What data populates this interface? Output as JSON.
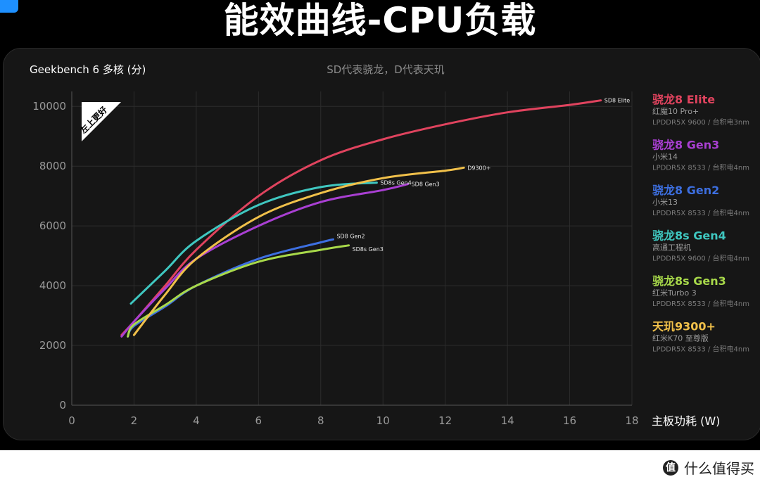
{
  "page": {
    "title": "能效曲线-CPU负载",
    "corner_badge": "",
    "watermark": "什么值得买",
    "watermark_logo": "值"
  },
  "chart_data": {
    "type": "line",
    "title": "Geekbench 6 多核 (分)",
    "subtitle": "SD代表骁龙，D代表天玑",
    "xlabel": "主板功耗 (W)",
    "ylabel": "",
    "xlim": [
      0,
      18
    ],
    "ylim": [
      0,
      10500
    ],
    "xticks": [
      0,
      2,
      4,
      6,
      8,
      10,
      12,
      14,
      16,
      18
    ],
    "yticks": [
      0,
      2000,
      4000,
      6000,
      8000,
      10000
    ],
    "grid": true,
    "badge": "左上更好",
    "legend_position": "right",
    "series": [
      {
        "name": "骁龙8 Elite",
        "device": "红魔10 Pro+",
        "spec": "LPDDR5X 9600 / 台积电3nm",
        "color": "#e0435e",
        "end_label": "SD8 Elite",
        "points": [
          [
            1.6,
            2350
          ],
          [
            2,
            2800
          ],
          [
            3,
            4000
          ],
          [
            4,
            5200
          ],
          [
            6,
            7000
          ],
          [
            8,
            8200
          ],
          [
            10,
            8900
          ],
          [
            12,
            9400
          ],
          [
            14,
            9800
          ],
          [
            16,
            10050
          ],
          [
            17,
            10200
          ]
        ]
      },
      {
        "name": "骁龙8 Gen3",
        "device": "小米14",
        "spec": "LPDDR5X 8533 / 台积电4nm",
        "color": "#a93fd2",
        "end_label": "SD8 Gen3",
        "points": [
          [
            1.6,
            2300
          ],
          [
            2,
            2800
          ],
          [
            3,
            3900
          ],
          [
            4,
            4900
          ],
          [
            6,
            6000
          ],
          [
            8,
            6800
          ],
          [
            10,
            7200
          ],
          [
            10.8,
            7400
          ]
        ]
      },
      {
        "name": "骁龙8 Gen2",
        "device": "小米13",
        "spec": "LPDDR5X 8533 / 台积电4nm",
        "color": "#3d6fe0",
        "end_label": "SD8 Gen2",
        "points": [
          [
            1.8,
            2300
          ],
          [
            2,
            2650
          ],
          [
            3,
            3300
          ],
          [
            4,
            4000
          ],
          [
            6,
            4900
          ],
          [
            8,
            5450
          ],
          [
            8.4,
            5550
          ]
        ]
      },
      {
        "name": "骁龙8s Gen4",
        "device": "高通工程机",
        "spec": "LPDDR5X 9600 / 台积电4nm",
        "color": "#3fc7c0",
        "end_label": "SD8s Gen4",
        "points": [
          [
            1.9,
            3400
          ],
          [
            3,
            4500
          ],
          [
            4,
            5500
          ],
          [
            6,
            6700
          ],
          [
            8,
            7300
          ],
          [
            9.8,
            7450
          ]
        ]
      },
      {
        "name": "骁龙8s Gen3",
        "device": "红米Turbo 3",
        "spec": "LPDDR5X 8533 / 台积电4nm",
        "color": "#a8d94a",
        "end_label": "SD8s Gen3",
        "points": [
          [
            1.8,
            2300
          ],
          [
            2,
            2700
          ],
          [
            3,
            3350
          ],
          [
            4,
            4000
          ],
          [
            6,
            4800
          ],
          [
            8,
            5200
          ],
          [
            8.9,
            5350
          ]
        ]
      },
      {
        "name": "天玑9300+",
        "device": "红米K70 至尊版",
        "spec": "LPDDR5X 8533 / 台积电4nm",
        "color": "#f0c04a",
        "end_label": "D9300+",
        "points": [
          [
            2,
            2350
          ],
          [
            3,
            3700
          ],
          [
            4,
            4900
          ],
          [
            6,
            6300
          ],
          [
            8,
            7100
          ],
          [
            10,
            7600
          ],
          [
            12,
            7850
          ],
          [
            12.6,
            7950
          ]
        ]
      }
    ]
  }
}
